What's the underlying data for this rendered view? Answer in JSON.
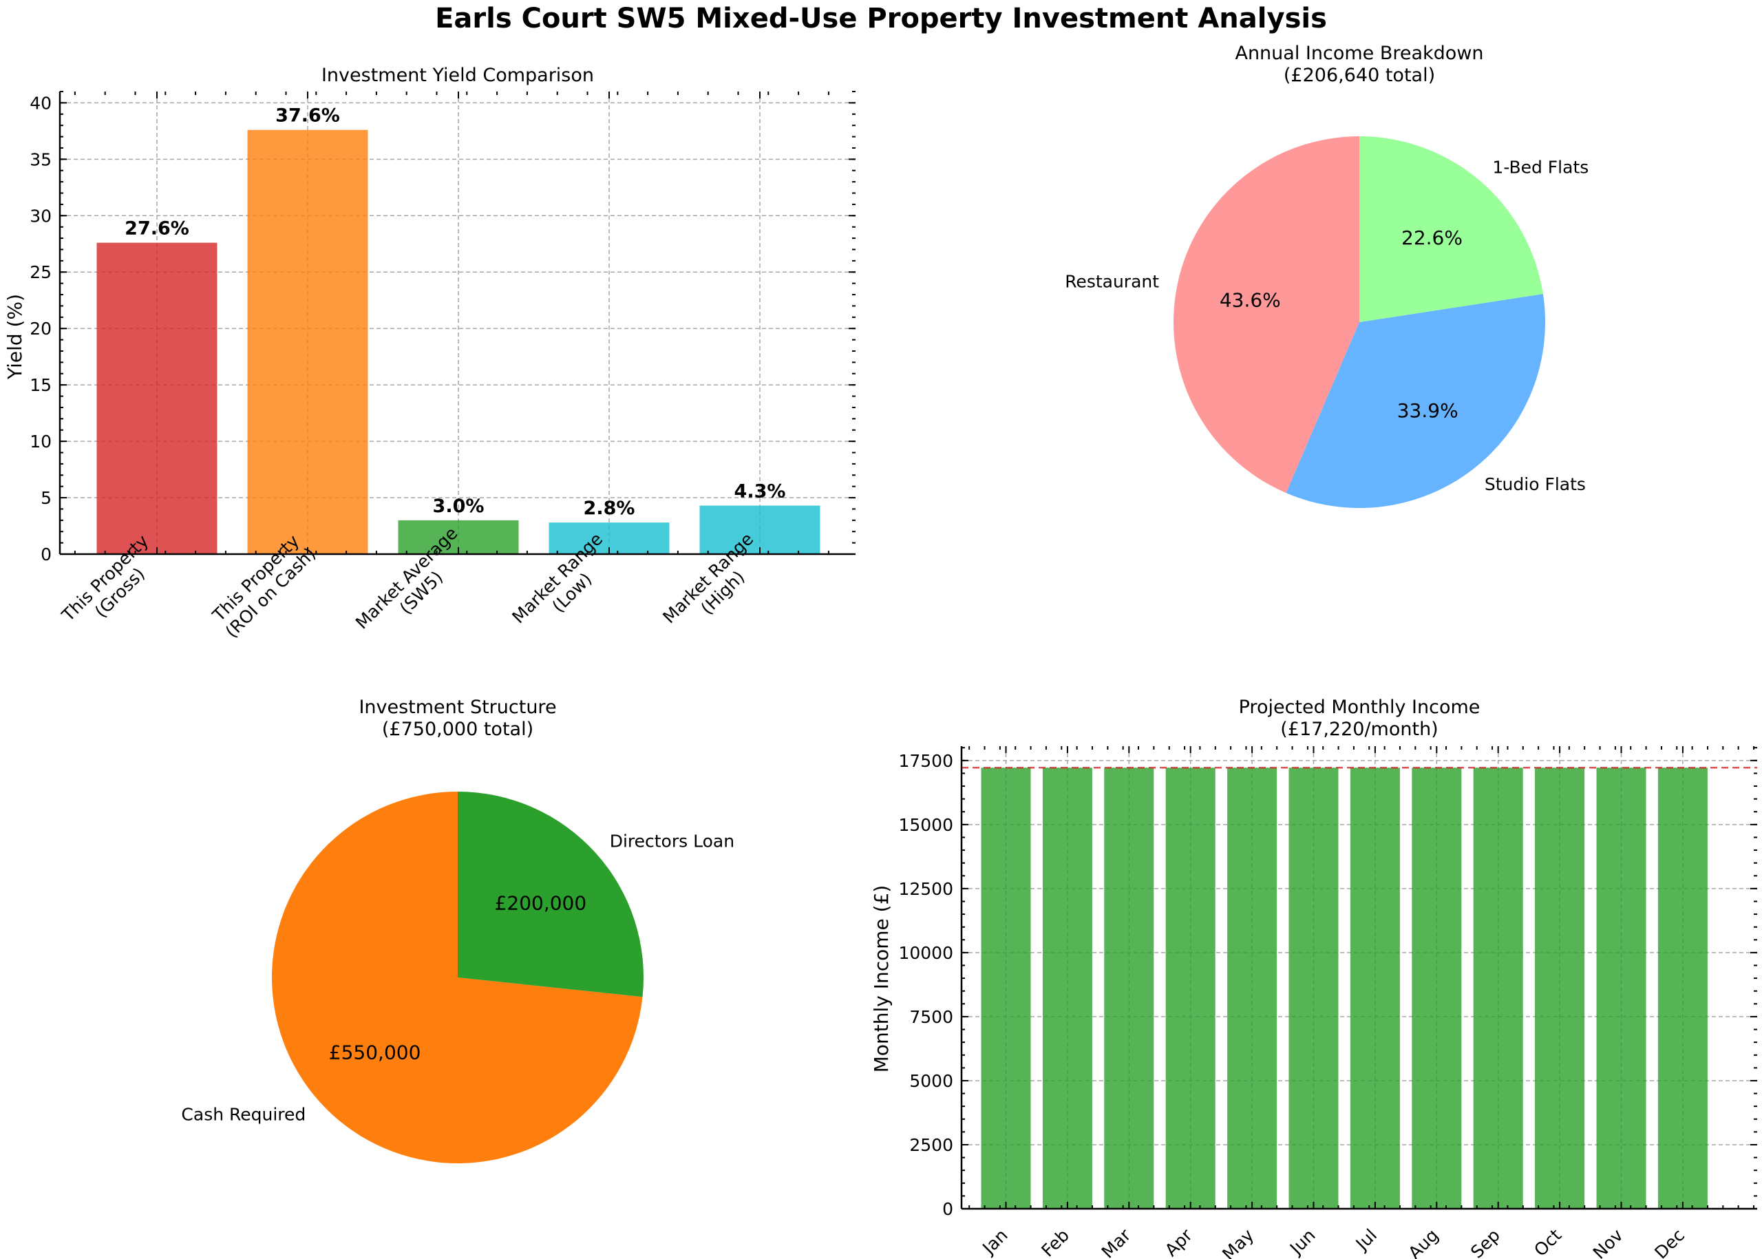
{
  "figure_title": "Earls Court SW5 Mixed-Use Property Investment Analysis",
  "chart_data": [
    {
      "id": "yield",
      "type": "bar",
      "title": "Investment Yield Comparison",
      "xlabel": "",
      "ylabel": "Yield (%)",
      "ylim": [
        0,
        41
      ],
      "yticks": [
        0,
        5,
        10,
        15,
        20,
        25,
        30,
        35,
        40
      ],
      "grid": true,
      "categories": [
        [
          "This Property",
          "(Gross)"
        ],
        [
          "This Property",
          "(ROI on Cash)"
        ],
        [
          "Market Average",
          "(SW5)"
        ],
        [
          "Market Range",
          "(Low)"
        ],
        [
          "Market Range",
          "(High)"
        ]
      ],
      "values": [
        27.6,
        37.6,
        3.0,
        2.8,
        4.3
      ],
      "value_labels": [
        "27.6%",
        "37.6%",
        "3.0%",
        "2.8%",
        "4.3%"
      ],
      "colors": [
        "#d62728",
        "#ff7f0e",
        "#2ca02c",
        "#17becf",
        "#17becf"
      ]
    },
    {
      "id": "income",
      "type": "pie",
      "title": "Annual Income Breakdown",
      "subtitle": "(£206,640 total)",
      "labels": [
        "Restaurant",
        "Studio Flats",
        "1-Bed Flats"
      ],
      "values": [
        43.6,
        33.9,
        22.6
      ],
      "value_labels": [
        "43.6%",
        "33.9%",
        "22.6%"
      ],
      "colors": [
        "#ff9999",
        "#66b3ff",
        "#99ff99"
      ]
    },
    {
      "id": "structure",
      "type": "pie",
      "title": "Investment Structure",
      "subtitle": "(£750,000 total)",
      "labels": [
        "Cash Required",
        "Directors Loan"
      ],
      "values": [
        550000,
        200000
      ],
      "value_labels": [
        "£550,000",
        "£200,000"
      ],
      "colors": [
        "#ff7f0e",
        "#2ca02c"
      ]
    },
    {
      "id": "monthly",
      "type": "bar",
      "title": "Projected Monthly Income",
      "subtitle": "(£17,220/month)",
      "xlabel": "",
      "ylabel": "Monthly Income (£)",
      "ylim": [
        0,
        18060
      ],
      "yticks": [
        0,
        2500,
        5000,
        7500,
        10000,
        12500,
        15000,
        17500
      ],
      "grid": true,
      "categories": [
        "Jan",
        "Feb",
        "Mar",
        "Apr",
        "May",
        "Jun",
        "Jul",
        "Aug",
        "Sep",
        "Oct",
        "Nov",
        "Dec"
      ],
      "values": [
        17220,
        17220,
        17220,
        17220,
        17220,
        17220,
        17220,
        17220,
        17220,
        17220,
        17220,
        17220
      ],
      "reference_line": 17220,
      "bar_color": "#2ca02c",
      "reference_color": "#d62728"
    }
  ]
}
